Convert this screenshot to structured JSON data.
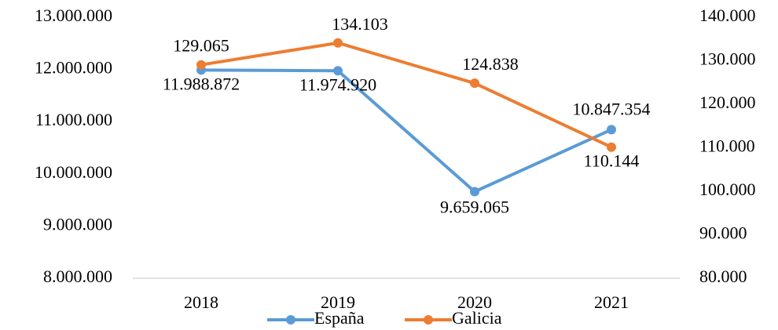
{
  "chart_data": {
    "type": "line",
    "categories": [
      "2018",
      "2019",
      "2020",
      "2021"
    ],
    "series": [
      {
        "name": "España",
        "color": "#5b9bd5",
        "axis": "y",
        "values": [
          11988872,
          11974920,
          9659065,
          10847354
        ],
        "value_labels": [
          "11.988.872",
          "11.974.920",
          "9.659.065",
          "10.847.354"
        ]
      },
      {
        "name": "Galicia",
        "color": "#ed7d31",
        "axis": "y2",
        "values": [
          129065,
          134103,
          124838,
          110144
        ],
        "value_labels": [
          "129.065",
          "134.103",
          "124.838",
          "110.144"
        ]
      }
    ],
    "ylim": [
      8000000,
      13000000
    ],
    "yticks": [
      {
        "value": 8000000,
        "label": "8.000.000"
      },
      {
        "value": 9000000,
        "label": "9.000.000"
      },
      {
        "value": 10000000,
        "label": "10.000.000"
      },
      {
        "value": 11000000,
        "label": "11.000.000"
      },
      {
        "value": 12000000,
        "label": "12.000.000"
      },
      {
        "value": 13000000,
        "label": "13.000.000"
      }
    ],
    "y2lim": [
      80000,
      140000
    ],
    "y2ticks": [
      {
        "value": 80000,
        "label": "80.000"
      },
      {
        "value": 90000,
        "label": "90.000"
      },
      {
        "value": 100000,
        "label": "100.000"
      },
      {
        "value": 110000,
        "label": "110.000"
      },
      {
        "value": 120000,
        "label": "120.000"
      },
      {
        "value": 130000,
        "label": "130.000"
      },
      {
        "value": 140000,
        "label": "140.000"
      }
    ],
    "grid": false,
    "legend": "bottom"
  }
}
